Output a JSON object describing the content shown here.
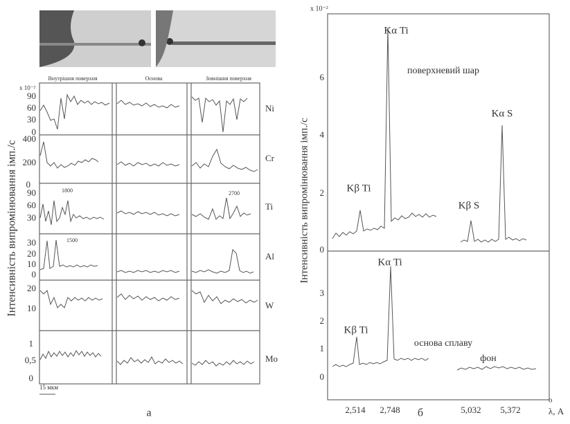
{
  "panel_a": {
    "photo_labels": [
      "Внутрішня поверхня",
      "Основа",
      "Зовнішня поверхня"
    ],
    "multiplier": "x 10⁻²",
    "rows": [
      {
        "element": "Ni",
        "ticks": [
          "90",
          "60",
          "30",
          "0"
        ]
      },
      {
        "element": "Cr",
        "ticks": [
          "400",
          "200",
          "0"
        ]
      },
      {
        "element": "Ti",
        "ticks": [
          "90",
          "60",
          "30"
        ]
      },
      {
        "element": "Al",
        "ticks": [
          "30",
          "20",
          "10",
          "0"
        ]
      },
      {
        "element": "W",
        "ticks": [
          "20",
          "10"
        ]
      },
      {
        "element": "Mo",
        "ticks": [
          "1",
          "0,5",
          "0"
        ]
      }
    ],
    "annotations": [
      "1800",
      "2700",
      "1500"
    ],
    "scale_bar": "15 мкм",
    "caption": "а"
  },
  "y_axis_label": "Інтенсивність випромінювання імп./с",
  "panel_b": {
    "multiplier": "x 10⁻²",
    "upper": {
      "title": "поверхневий шар",
      "ticks": [
        "6",
        "4",
        "2",
        "0"
      ],
      "peaks": [
        "Kα Ti",
        "Kβ Ti",
        "Kβ S",
        "Kα S"
      ]
    },
    "lower": {
      "title": "основа сплаву",
      "ticks": [
        "3",
        "2",
        "1",
        "0"
      ],
      "peaks": [
        "Kα Ti",
        "Kβ Ti"
      ],
      "background": "фон"
    },
    "x_ticks": [
      "2,514",
      "2,748",
      "5,032",
      "5,372"
    ],
    "x_label": "λ, A",
    "x_unit_mark": "o",
    "caption": "б"
  }
}
